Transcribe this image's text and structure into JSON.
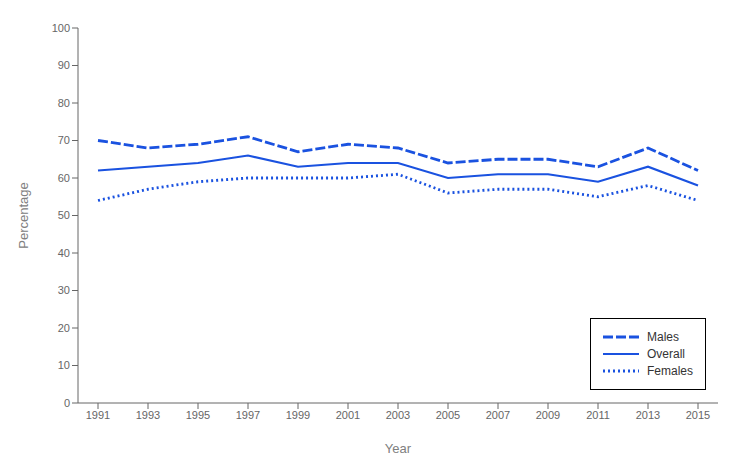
{
  "chart_data": {
    "type": "line",
    "x": [
      1991,
      1993,
      1995,
      1997,
      1999,
      2001,
      2003,
      2005,
      2007,
      2009,
      2011,
      2013,
      2015
    ],
    "xlim": [
      1990.2,
      2015.8
    ],
    "xticks": [
      1991,
      1993,
      1995,
      1997,
      1999,
      2001,
      2003,
      2005,
      2007,
      2009,
      2011,
      2013,
      2015
    ],
    "ylim": [
      0,
      100
    ],
    "yticks": [
      0,
      10,
      20,
      30,
      40,
      50,
      60,
      70,
      80,
      90,
      100
    ],
    "xlabel": "Year",
    "ylabel": "Percentage",
    "grid": false,
    "legend": "lower right",
    "series": [
      {
        "name": "Males",
        "color": "#1a52e0",
        "line_style": "dashed",
        "values": [
          70,
          68,
          69,
          71,
          67,
          69,
          68,
          64,
          65,
          65,
          63,
          68,
          62
        ]
      },
      {
        "name": "Overall",
        "color": "#1a52e0",
        "line_style": "solid",
        "values": [
          62,
          63,
          64,
          66,
          63,
          64,
          64,
          60,
          61,
          61,
          59,
          63,
          58
        ]
      },
      {
        "name": "Females",
        "color": "#1a52e0",
        "line_style": "dotted",
        "values": [
          54,
          57,
          59,
          60,
          60,
          60,
          61,
          56,
          57,
          57,
          55,
          58,
          54
        ]
      }
    ]
  }
}
